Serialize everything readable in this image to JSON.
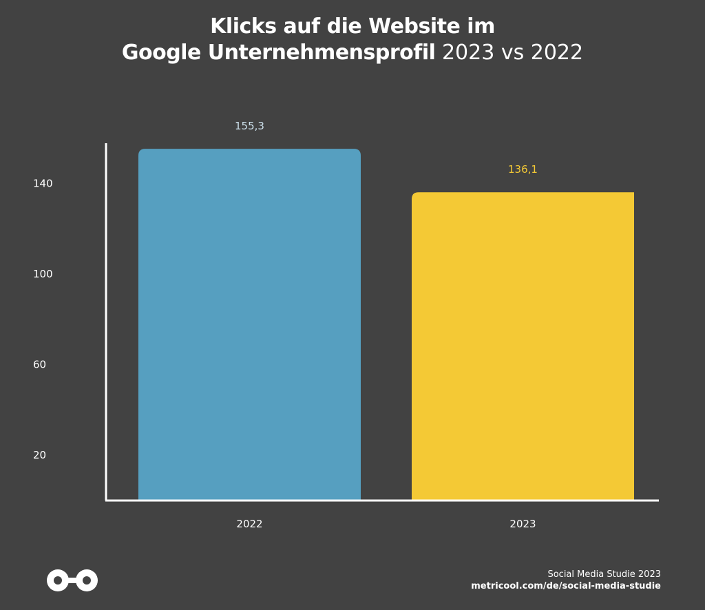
{
  "title": {
    "line1": "Klicks auf die Website im",
    "line2_bold": "Google Unternehmensprofil",
    "line2_light": "2023 vs 2022"
  },
  "chart_data": {
    "type": "bar",
    "title": "Klicks auf die Website im Google Unternehmensprofil 2023 vs 2022",
    "categories": [
      "2022",
      "2023"
    ],
    "values": [
      155.3,
      136.1
    ],
    "value_labels": [
      "155,3",
      "136,1"
    ],
    "colors": [
      "#569fc0",
      "#f4c935"
    ],
    "yticks": [
      20,
      60,
      100,
      140
    ],
    "ylim": [
      0,
      160
    ],
    "xlabel": "",
    "ylabel": "",
    "grid": false,
    "legend": "none"
  },
  "colors": {
    "background": "#424242",
    "axis": "#ffffff",
    "text": "#ffffff"
  },
  "footer": {
    "study": "Social Media Studie 2023",
    "url": "metricool.com/de/social-media-studie",
    "logo_icon": "metricool-logo-icon"
  }
}
